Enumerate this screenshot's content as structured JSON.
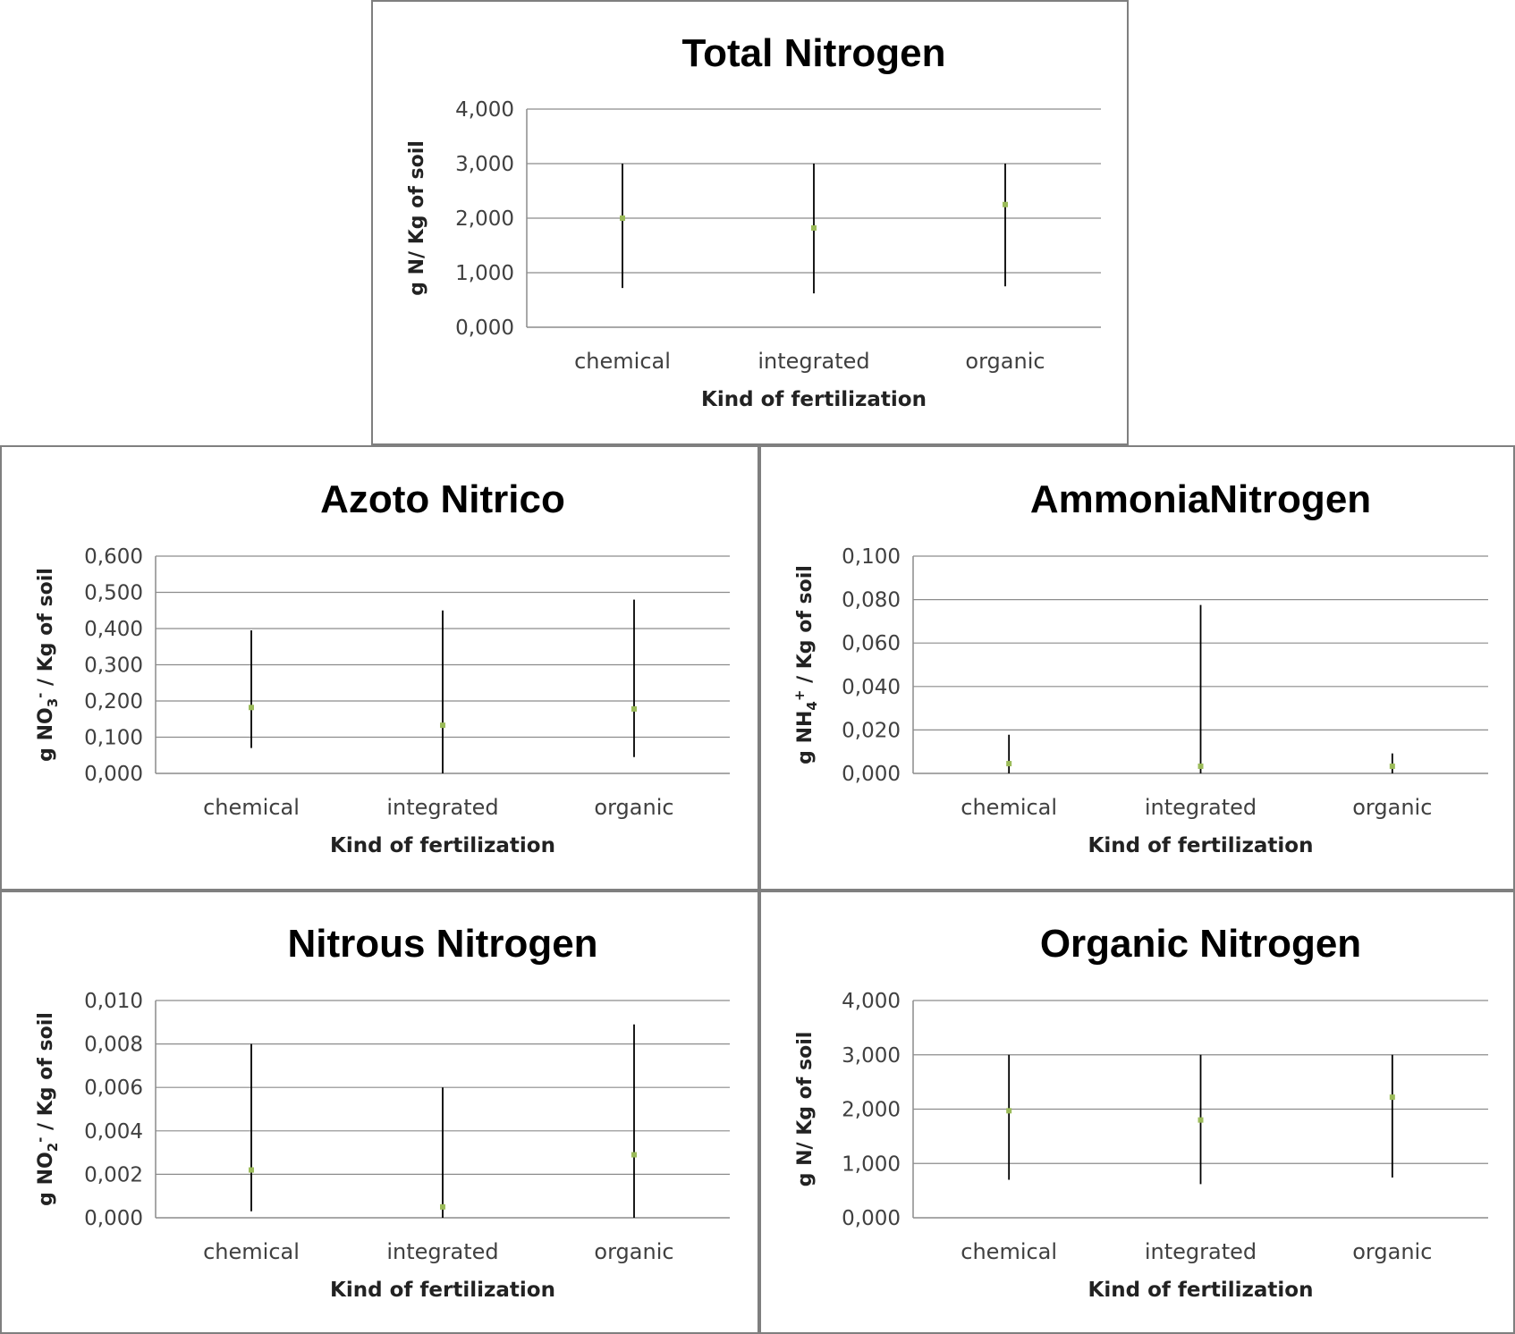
{
  "colors": {
    "point": "#9bbb59",
    "errorbar": "#000000",
    "gridline": "#8c8c8c",
    "border": "#7f7f7f"
  },
  "chart_data": [
    {
      "type": "scatter",
      "title": "Total Nitrogen",
      "xlabel": "Kind of fertilization",
      "ylabel": "g N/ Kg of soil",
      "categories": [
        "chemical",
        "integrated",
        "organic"
      ],
      "values": [
        2.0,
        1.82,
        2.25
      ],
      "error_low": [
        0.72,
        0.62,
        0.75
      ],
      "error_high": [
        3.0,
        3.0,
        3.0
      ],
      "ylim": [
        0,
        4
      ],
      "yticks": [
        "0,000",
        "1,000",
        "2,000",
        "3,000",
        "4,000"
      ],
      "grid": true
    },
    {
      "type": "scatter",
      "title": "Azoto Nitrico",
      "xlabel": "Kind of fertilization",
      "ylabel": "g NO3- / Kg of soil",
      "categories": [
        "chemical",
        "integrated",
        "organic"
      ],
      "values": [
        0.182,
        0.133,
        0.178
      ],
      "error_low": [
        0.07,
        0.0,
        0.045
      ],
      "error_high": [
        0.395,
        0.45,
        0.48
      ],
      "ylim": [
        0,
        0.6
      ],
      "yticks": [
        "0,000",
        "0,100",
        "0,200",
        "0,300",
        "0,400",
        "0,500",
        "0,600"
      ],
      "grid": true
    },
    {
      "type": "scatter",
      "title": "AmmoniaNitrogen",
      "xlabel": "Kind of fertilization",
      "ylabel": "g NH4+ / Kg of soil",
      "categories": [
        "chemical",
        "integrated",
        "organic"
      ],
      "values": [
        0.0045,
        0.0033,
        0.0033
      ],
      "error_low": [
        0.0,
        0.0,
        0.0
      ],
      "error_high": [
        0.0178,
        0.0775,
        0.0092
      ],
      "ylim": [
        0,
        0.1
      ],
      "yticks": [
        "0,000",
        "0,020",
        "0,040",
        "0,060",
        "0,080",
        "0,100"
      ],
      "grid": true
    },
    {
      "type": "scatter",
      "title": "Nitrous Nitrogen",
      "xlabel": "Kind of fertilization",
      "ylabel": "g NO2- / Kg of soil",
      "categories": [
        "chemical",
        "integrated",
        "organic"
      ],
      "values": [
        0.0022,
        0.0005,
        0.0029
      ],
      "error_low": [
        0.0003,
        0.0,
        0.0
      ],
      "error_high": [
        0.008,
        0.006,
        0.0089
      ],
      "ylim": [
        0,
        0.01
      ],
      "yticks": [
        "0,000",
        "0,002",
        "0,004",
        "0,006",
        "0,008",
        "0,010"
      ],
      "grid": true
    },
    {
      "type": "scatter",
      "title": "Organic Nitrogen",
      "xlabel": "Kind of fertilization",
      "ylabel": "g N/ Kg of soil",
      "categories": [
        "chemical",
        "integrated",
        "organic"
      ],
      "values": [
        1.97,
        1.8,
        2.22
      ],
      "error_low": [
        0.7,
        0.62,
        0.74
      ],
      "error_high": [
        3.0,
        3.0,
        3.0
      ],
      "ylim": [
        0,
        4
      ],
      "yticks": [
        "0,000",
        "1,000",
        "2,000",
        "3,000",
        "4,000"
      ],
      "grid": true
    }
  ]
}
